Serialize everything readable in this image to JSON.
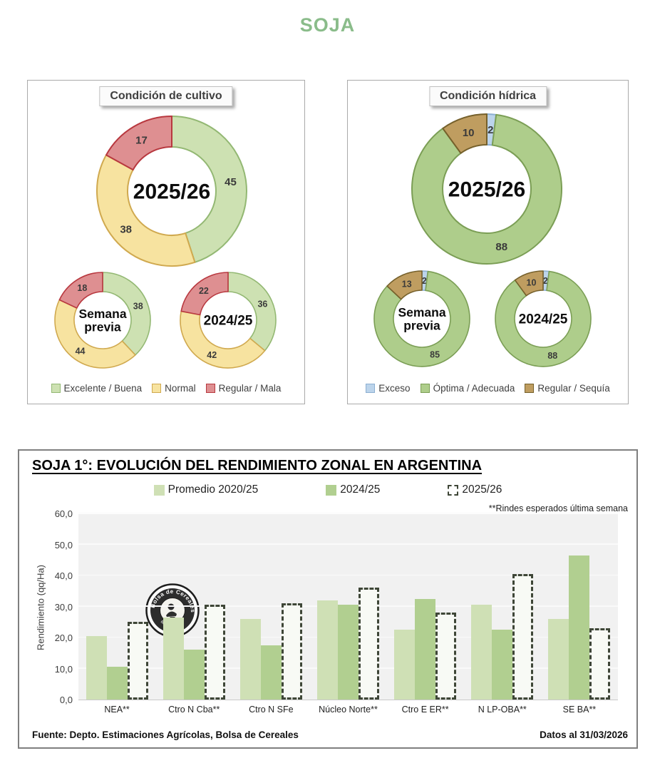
{
  "page": {
    "title": "SOJA",
    "accent_color": "#8abc8a"
  },
  "chart_data": [
    {
      "id": "condicion_cultivo",
      "type": "donut",
      "title": "Condición de cultivo",
      "categories": [
        "Excelente / Buena",
        "Normal",
        "Regular / Mala"
      ],
      "colors": [
        "#cde1b2",
        "#f7e3a0",
        "#de8f91"
      ],
      "border_colors": [
        "#93b873",
        "#d0a94f",
        "#b8383f"
      ],
      "rings": [
        {
          "id": "2025/26",
          "center_label": "2025/26",
          "values": [
            45,
            38,
            17
          ]
        },
        {
          "id": "semana_previa",
          "center_label": "Semana previa",
          "values": [
            38,
            44,
            18
          ]
        },
        {
          "id": "2024/25",
          "center_label": "2024/25",
          "values": [
            36,
            42,
            22
          ]
        }
      ]
    },
    {
      "id": "condicion_hidrica",
      "type": "donut",
      "title": "Condición hídrica",
      "categories": [
        "Exceso",
        "Óptima / Adecuada",
        "Regular / Sequía"
      ],
      "colors": [
        "#bcd4eb",
        "#aecd8b",
        "#bf9d60"
      ],
      "border_colors": [
        "#8cafd2",
        "#7b9e55",
        "#75602b"
      ],
      "rings": [
        {
          "id": "2025/26",
          "center_label": "2025/26",
          "values": [
            2,
            88,
            10
          ]
        },
        {
          "id": "semana_previa",
          "center_label": "Semana previa",
          "values": [
            2,
            85,
            13
          ]
        },
        {
          "id": "2024/25",
          "center_label": "2024/25",
          "values": [
            2,
            88,
            10
          ]
        }
      ]
    },
    {
      "id": "rendimiento_zonal",
      "type": "bar",
      "title": "SOJA 1°: EVOLUCIÓN DEL RENDIMIENTO ZONAL EN ARGENTINA",
      "note": "**Rindes esperados última semana",
      "ylabel": "Rendimiento (qq/Ha)",
      "ylim": [
        0,
        60
      ],
      "ytick_labels": [
        "0,0",
        "10,0",
        "20,0",
        "30,0",
        "40,0",
        "50,0",
        "60,0"
      ],
      "grid": true,
      "legend_position": "top",
      "watermark": "Bolsa de Cereales",
      "categories": [
        "NEA**",
        "Ctro N Cba**",
        "Ctro N SFe",
        "Núcleo Norte**",
        "Ctro E ER**",
        "N LP-OBA**",
        "SE BA**"
      ],
      "series": [
        {
          "name": "Promedio 2020/25",
          "style": "fill",
          "color": "#cfe0b5",
          "values": [
            20.5,
            26.5,
            26.0,
            32.0,
            22.5,
            30.5,
            26.0
          ]
        },
        {
          "name": "2024/25",
          "style": "fill",
          "color": "#b1cf90",
          "values": [
            10.5,
            16.0,
            17.5,
            30.5,
            32.5,
            22.5,
            46.5
          ]
        },
        {
          "name": "2025/26",
          "style": "dashed",
          "color": "#f8faf5",
          "border_color": "#3e4637",
          "values": [
            25.0,
            30.5,
            31.0,
            36.0,
            28.0,
            40.5,
            23.0
          ]
        }
      ]
    }
  ],
  "footer": {
    "source": "Fuente: Depto. Estimaciones Agrícolas, Bolsa de Cereales",
    "date": "Datos al 31/03/2026"
  }
}
